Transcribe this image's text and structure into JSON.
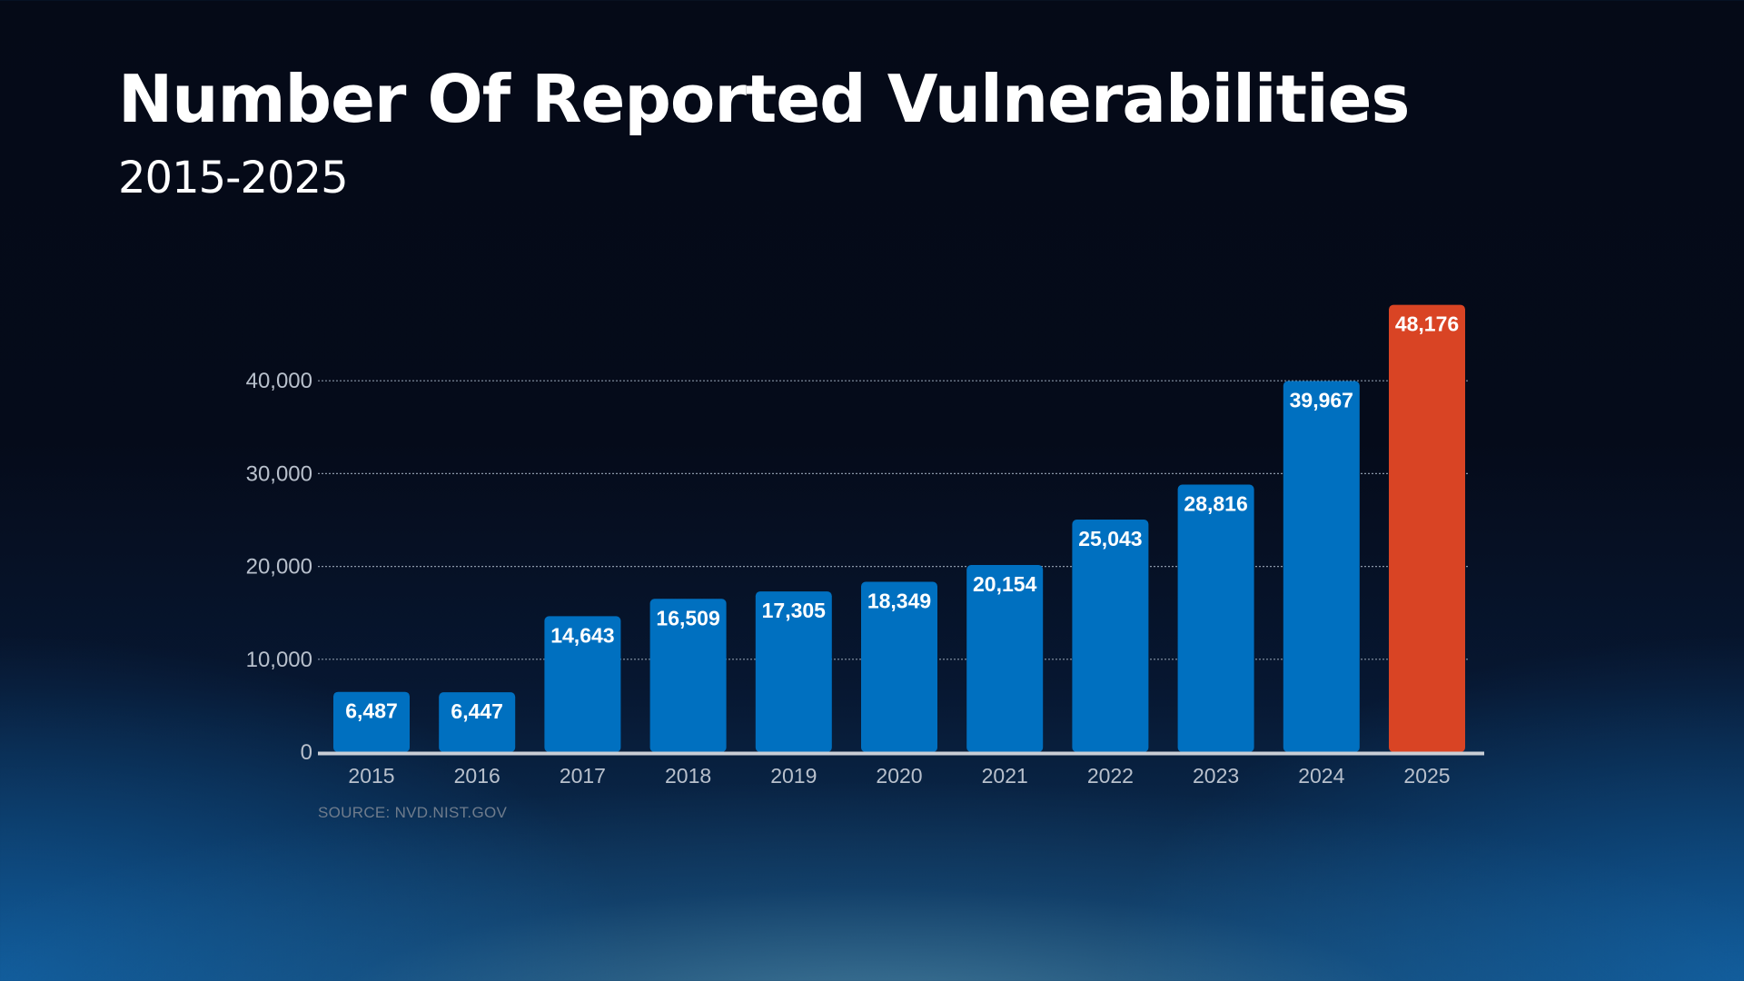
{
  "title": "Number Of Reported Vulnerabilities",
  "subtitle": "2015-2025",
  "source": "SOURCE: NVD.NIST.GOV",
  "colors": {
    "bar": "#0070c0",
    "highlight": "#d94424",
    "grid": "#8a97a8",
    "axis_text": "#b8c0cc",
    "baseline": "#c9ced6"
  },
  "chart_data": {
    "type": "bar",
    "categories": [
      "2015",
      "2016",
      "2017",
      "2018",
      "2019",
      "2020",
      "2021",
      "2022",
      "2023",
      "2024",
      "2025"
    ],
    "values": [
      6487,
      6447,
      14643,
      16509,
      17305,
      18349,
      20154,
      25043,
      28816,
      39967,
      48176
    ],
    "value_labels": [
      "6,487",
      "6,447",
      "14,643",
      "16,509",
      "17,305",
      "18,349",
      "20,154",
      "25,043",
      "28,816",
      "39,967",
      "48,176"
    ],
    "highlight_category": "2025",
    "title": "Number Of Reported Vulnerabilities",
    "subtitle": "2015-2025",
    "xlabel": "",
    "ylabel": "",
    "yticks": [
      0,
      10000,
      20000,
      30000,
      40000
    ],
    "ytick_labels": [
      "0",
      "10,000",
      "20,000",
      "30,000",
      "40,000"
    ],
    "ylim": [
      0,
      48176
    ],
    "grid": true,
    "grid_style": "dotted",
    "legend": "none",
    "data_labels": "inside-top"
  }
}
